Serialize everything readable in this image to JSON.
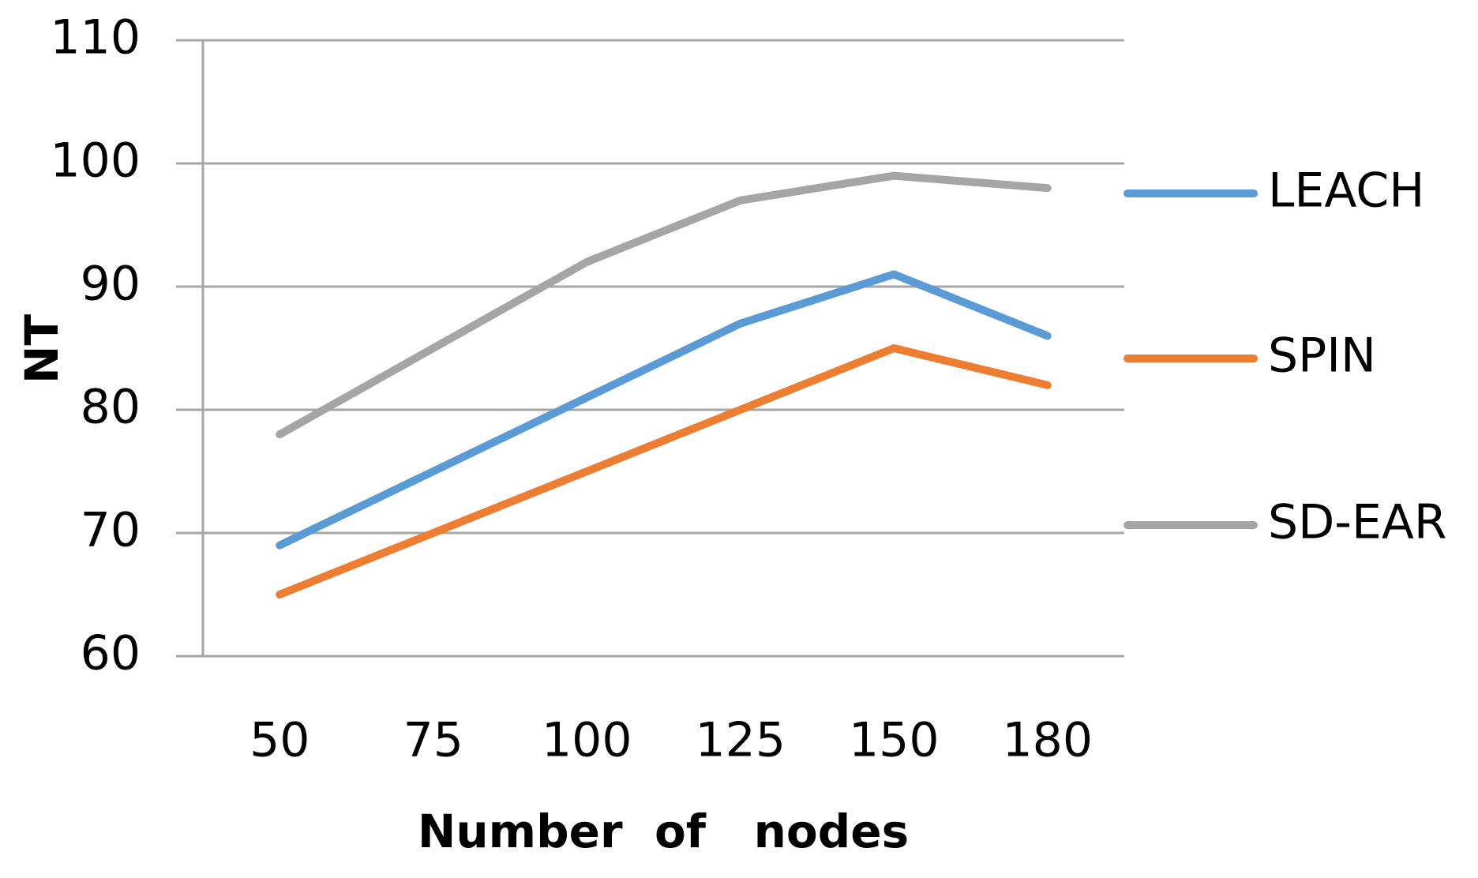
{
  "chart_data": {
    "type": "line",
    "categories": [
      "50",
      "75",
      "100",
      "125",
      "150",
      "180"
    ],
    "series": [
      {
        "name": "LEACH",
        "color": "#5b9bd5",
        "values": [
          69,
          75,
          81,
          87,
          91,
          86
        ]
      },
      {
        "name": "SPIN",
        "color": "#ed7d31",
        "values": [
          65,
          70,
          75,
          80,
          85,
          82
        ]
      },
      {
        "name": "SD-EAR",
        "color": "#a5a5a5",
        "values": [
          78,
          85,
          92,
          97,
          99,
          98
        ]
      }
    ],
    "x_label": "Number  of   nodes",
    "y_label": "NT",
    "ylim": [
      60,
      110
    ],
    "yticks": [
      60,
      70,
      80,
      90,
      100,
      110
    ],
    "grid": true,
    "legend": "right"
  }
}
